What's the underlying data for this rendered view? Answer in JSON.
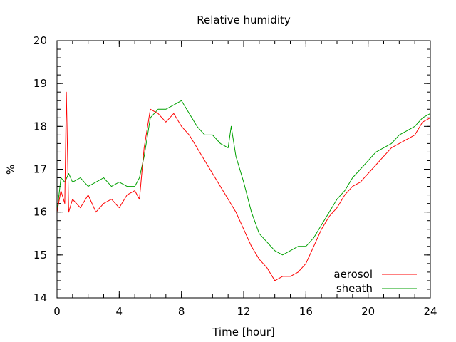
{
  "chart_data": {
    "type": "line",
    "title": "Relative humidity",
    "xlabel": "Time [hour]",
    "ylabel": "%",
    "xlim": [
      0,
      24
    ],
    "ylim": [
      14,
      20
    ],
    "x_ticks": [
      0,
      4,
      8,
      12,
      16,
      20,
      24
    ],
    "y_ticks": [
      14,
      15,
      16,
      17,
      18,
      19,
      20
    ],
    "x_minor_step": 1,
    "y_minor_step": 0.2,
    "grid": false,
    "legend_position": "bottom-right",
    "series": [
      {
        "name": "aerosol",
        "color": "#ff0000",
        "x": [
          0,
          0.25,
          0.5,
          0.6,
          0.75,
          1,
          1.5,
          2,
          2.5,
          3,
          3.5,
          4,
          4.5,
          5,
          5.3,
          5.6,
          6,
          6.5,
          7,
          7.5,
          8,
          8.5,
          9,
          9.5,
          10,
          10.5,
          11,
          11.5,
          12,
          12.5,
          13,
          13.5,
          14,
          14.5,
          15,
          15.5,
          16,
          16.5,
          17,
          17.5,
          18,
          18.5,
          19,
          19.5,
          20,
          20.5,
          21,
          21.5,
          22,
          22.5,
          23,
          23.5,
          24
        ],
        "y": [
          16.0,
          16.5,
          16.2,
          18.8,
          16.0,
          16.3,
          16.1,
          16.4,
          16.0,
          16.2,
          16.3,
          16.1,
          16.4,
          16.5,
          16.3,
          17.5,
          18.4,
          18.3,
          18.1,
          18.3,
          18.0,
          17.8,
          17.5,
          17.2,
          16.9,
          16.6,
          16.3,
          16.0,
          15.6,
          15.2,
          14.9,
          14.7,
          14.4,
          14.5,
          14.5,
          14.6,
          14.8,
          15.2,
          15.6,
          15.9,
          16.1,
          16.4,
          16.6,
          16.7,
          16.9,
          17.1,
          17.3,
          17.5,
          17.6,
          17.7,
          17.8,
          18.1,
          18.2
        ]
      },
      {
        "name": "sheath",
        "color": "#00a000",
        "x": [
          0,
          0.25,
          0.5,
          0.75,
          1,
          1.5,
          2,
          2.5,
          3,
          3.5,
          4,
          4.5,
          5,
          5.3,
          5.6,
          6,
          6.5,
          7,
          7.5,
          8,
          8.5,
          9,
          9.5,
          10,
          10.5,
          11,
          11.2,
          11.5,
          12,
          12.5,
          13,
          13.5,
          14,
          14.5,
          15,
          15.5,
          16,
          16.5,
          17,
          17.5,
          18,
          18.5,
          19,
          19.5,
          20,
          20.5,
          21,
          21.5,
          22,
          22.5,
          23,
          23.5,
          24
        ],
        "y": [
          16.0,
          16.8,
          16.7,
          16.9,
          16.7,
          16.8,
          16.6,
          16.7,
          16.8,
          16.6,
          16.7,
          16.6,
          16.6,
          16.8,
          17.3,
          18.2,
          18.4,
          18.4,
          18.5,
          18.6,
          18.3,
          18.0,
          17.8,
          17.8,
          17.6,
          17.5,
          18.0,
          17.3,
          16.7,
          16.0,
          15.5,
          15.3,
          15.1,
          15.0,
          15.1,
          15.2,
          15.2,
          15.4,
          15.7,
          16.0,
          16.3,
          16.5,
          16.8,
          17.0,
          17.2,
          17.4,
          17.5,
          17.6,
          17.8,
          17.9,
          18.0,
          18.2,
          18.3
        ]
      }
    ]
  }
}
